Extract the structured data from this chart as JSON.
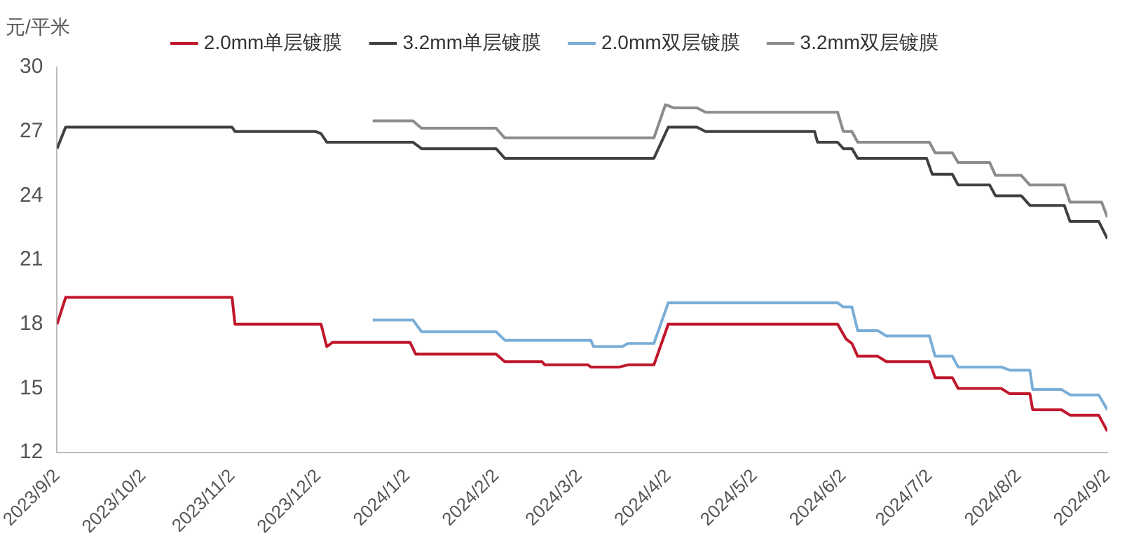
{
  "chart_data": {
    "type": "line",
    "ylabel": "元/平米",
    "legend": "top",
    "marker": "none",
    "line_style": "solid",
    "grid": false,
    "xlim": [
      "2023-09-02",
      "2024-09-02"
    ],
    "xticks": [
      {
        "value": "2023-09-02",
        "label": "2023/9/2"
      },
      {
        "value": "2023-10-02",
        "label": "2023/10/2"
      },
      {
        "value": "2023-11-02",
        "label": "2023/11/2"
      },
      {
        "value": "2023-12-02",
        "label": "2023/12/2"
      },
      {
        "value": "2024-01-02",
        "label": "2024/1/2"
      },
      {
        "value": "2024-02-02",
        "label": "2024/2/2"
      },
      {
        "value": "2024-03-02",
        "label": "2024/3/2"
      },
      {
        "value": "2024-04-02",
        "label": "2024/4/2"
      },
      {
        "value": "2024-05-02",
        "label": "2024/5/2"
      },
      {
        "value": "2024-06-02",
        "label": "2024/6/2"
      },
      {
        "value": "2024-07-02",
        "label": "2024/7/2"
      },
      {
        "value": "2024-08-02",
        "label": "2024/8/2"
      },
      {
        "value": "2024-09-02",
        "label": "2024/9/2"
      }
    ],
    "ylim": [
      12,
      30
    ],
    "yticks": [
      12,
      15,
      18,
      21,
      24,
      27,
      30
    ],
    "series": [
      {
        "name": "2.0mm单层镀膜",
        "color": "#c0172b",
        "x": [
          "2023-09-02",
          "2023-09-05",
          "2023-11-02",
          "2023-11-03",
          "2023-12-03",
          "2023-12-05",
          "2023-12-07",
          "2024-01-03",
          "2024-01-05",
          "2024-02-02",
          "2024-02-05",
          "2024-02-18",
          "2024-02-19",
          "2024-03-05",
          "2024-03-06",
          "2024-03-16",
          "2024-03-19",
          "2024-03-28",
          "2024-04-02",
          "2024-05-31",
          "2024-06-03",
          "2024-06-05",
          "2024-06-07",
          "2024-06-14",
          "2024-06-17",
          "2024-07-02",
          "2024-07-04",
          "2024-07-10",
          "2024-07-12",
          "2024-07-27",
          "2024-07-30",
          "2024-08-06",
          "2024-08-07",
          "2024-08-17",
          "2024-08-20",
          "2024-08-30",
          "2024-09-02"
        ],
        "values": [
          18.0,
          19.25,
          19.25,
          18.0,
          18.0,
          16.95,
          17.15,
          17.15,
          16.6,
          16.6,
          16.25,
          16.25,
          16.1,
          16.1,
          16.0,
          16.0,
          16.1,
          16.1,
          18.0,
          18.0,
          17.3,
          17.1,
          16.5,
          16.5,
          16.25,
          16.25,
          15.5,
          15.5,
          15.0,
          15.0,
          14.75,
          14.75,
          14.0,
          14.0,
          13.75,
          13.75,
          13.0
        ]
      },
      {
        "name": "3.2mm单层镀膜",
        "color": "#404040",
        "x": [
          "2023-09-02",
          "2023-09-05",
          "2023-11-02",
          "2023-11-03",
          "2023-12-01",
          "2023-12-03",
          "2023-12-05",
          "2024-01-04",
          "2024-01-07",
          "2024-02-02",
          "2024-02-05",
          "2024-03-28",
          "2024-04-02",
          "2024-04-12",
          "2024-04-15",
          "2024-05-23",
          "2024-05-24",
          "2024-05-31",
          "2024-06-02",
          "2024-06-05",
          "2024-06-07",
          "2024-07-01",
          "2024-07-03",
          "2024-07-10",
          "2024-07-12",
          "2024-07-23",
          "2024-07-25",
          "2024-08-03",
          "2024-08-06",
          "2024-08-18",
          "2024-08-20",
          "2024-08-30",
          "2024-09-02"
        ],
        "values": [
          26.2,
          27.2,
          27.2,
          27.0,
          27.0,
          26.9,
          26.5,
          26.5,
          26.2,
          26.2,
          25.75,
          25.75,
          27.2,
          27.2,
          27.0,
          27.0,
          26.5,
          26.5,
          26.2,
          26.2,
          25.75,
          25.75,
          25.0,
          25.0,
          24.5,
          24.5,
          24.0,
          24.0,
          23.55,
          23.55,
          22.8,
          22.8,
          22.0
        ]
      },
      {
        "name": "2.0mm双层镀膜",
        "color": "#7aaed8",
        "x": [
          "2023-12-21",
          "2024-01-04",
          "2024-01-07",
          "2024-02-02",
          "2024-02-05",
          "2024-03-06",
          "2024-03-07",
          "2024-03-17",
          "2024-03-19",
          "2024-03-28",
          "2024-04-02",
          "2024-05-31",
          "2024-06-02",
          "2024-06-05",
          "2024-06-07",
          "2024-06-14",
          "2024-06-17",
          "2024-07-02",
          "2024-07-04",
          "2024-07-10",
          "2024-07-12",
          "2024-07-27",
          "2024-07-30",
          "2024-08-06",
          "2024-08-07",
          "2024-08-17",
          "2024-08-20",
          "2024-08-30",
          "2024-09-02"
        ],
        "values": [
          18.2,
          18.2,
          17.65,
          17.65,
          17.25,
          17.25,
          16.95,
          16.95,
          17.1,
          17.1,
          19.0,
          19.0,
          18.8,
          18.8,
          17.7,
          17.7,
          17.45,
          17.45,
          16.5,
          16.5,
          16.0,
          16.0,
          15.85,
          15.85,
          14.95,
          14.95,
          14.7,
          14.7,
          14.0
        ]
      },
      {
        "name": "3.2mm双层镀膜",
        "color": "#8c8c8c",
        "x": [
          "2023-12-21",
          "2024-01-04",
          "2024-01-07",
          "2024-02-02",
          "2024-02-05",
          "2024-03-28",
          "2024-04-01",
          "2024-04-04",
          "2024-04-12",
          "2024-04-15",
          "2024-05-31",
          "2024-06-02",
          "2024-06-05",
          "2024-06-07",
          "2024-07-02",
          "2024-07-04",
          "2024-07-10",
          "2024-07-12",
          "2024-07-23",
          "2024-07-25",
          "2024-08-03",
          "2024-08-06",
          "2024-08-18",
          "2024-08-20",
          "2024-08-31",
          "2024-09-02"
        ],
        "values": [
          27.5,
          27.5,
          27.15,
          27.15,
          26.7,
          26.7,
          28.25,
          28.1,
          28.1,
          27.9,
          27.9,
          27.0,
          27.0,
          26.5,
          26.5,
          26.0,
          26.0,
          25.55,
          25.55,
          24.95,
          24.95,
          24.5,
          24.5,
          23.7,
          23.7,
          23.0
        ]
      }
    ]
  }
}
